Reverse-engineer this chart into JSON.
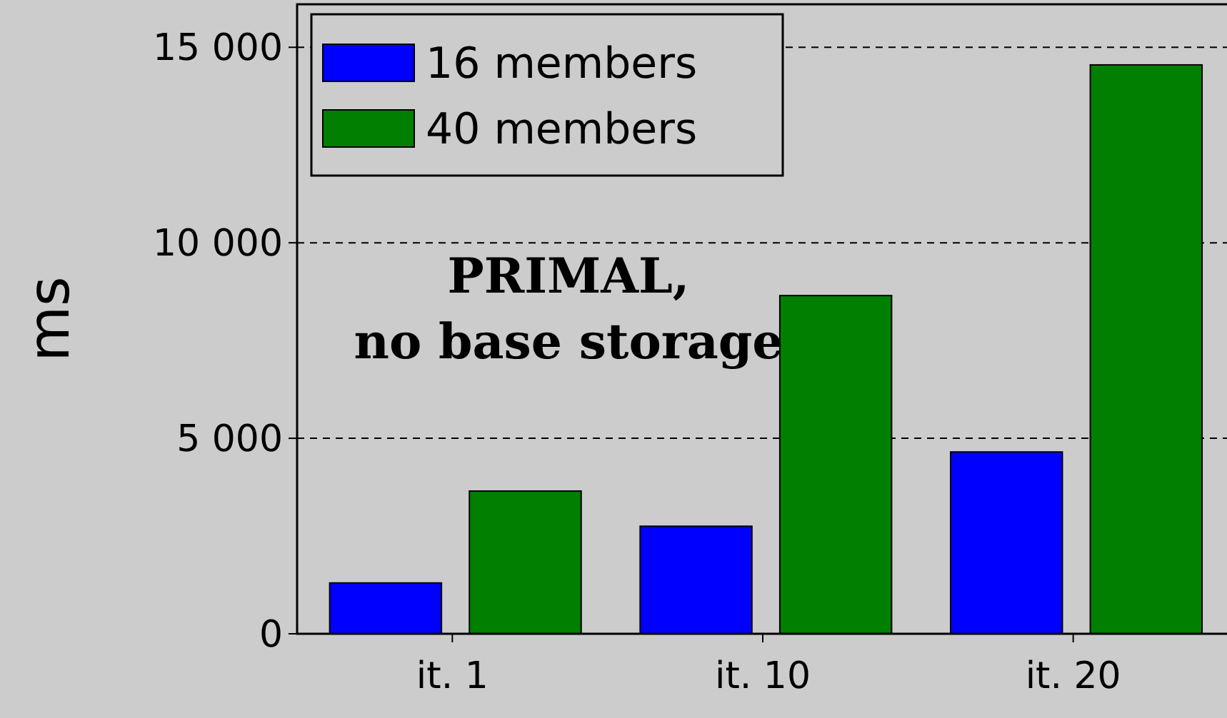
{
  "chart_data": {
    "type": "bar",
    "ylabel": "ms",
    "categories": [
      "it. 1",
      "it. 10",
      "it. 20"
    ],
    "series": [
      {
        "name": "16 members",
        "color": "#0000ff",
        "values": [
          1300,
          2750,
          4650
        ]
      },
      {
        "name": "40 members",
        "color": "#007f00",
        "values": [
          3650,
          8650,
          14550
        ]
      }
    ],
    "ylim": [
      0,
      16100
    ],
    "yticks": [
      {
        "value": 0,
        "label": "0"
      },
      {
        "value": 5000,
        "label": "5 000"
      },
      {
        "value": 10000,
        "label": "10 000"
      },
      {
        "value": 15000,
        "label": "15 000"
      }
    ],
    "grid": "y",
    "legend": "top left",
    "annotations": [
      "PRIMAL,\nno base storage"
    ]
  }
}
